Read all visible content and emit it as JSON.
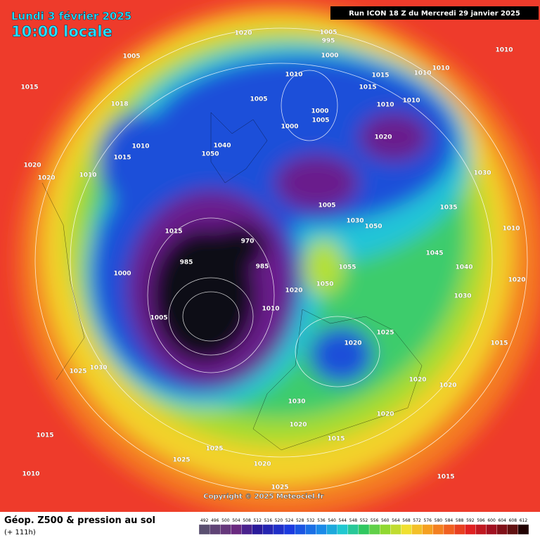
{
  "header": {
    "date": "Lundi 3 février 2025",
    "time": "10:00 locale",
    "run": "Run ICON 18 Z du Mercredi 29 janvier 2025"
  },
  "map": {
    "copyright": "Copyright © 2025 Meteociel.fr",
    "isobar_labels": [
      1020,
      1005,
      995,
      1000,
      1005,
      1010,
      1010,
      1010,
      1010,
      1015,
      1015,
      1015,
      1005,
      1010,
      1010,
      1018,
      1000,
      1005,
      1000,
      1020,
      1010,
      1040,
      1050,
      1015,
      1020,
      1010,
      1020,
      1005,
      1030,
      1050,
      1015,
      970,
      1000,
      985,
      985,
      1020,
      1050,
      1055,
      1005,
      1010,
      1025,
      1020,
      1030,
      1025,
      1030,
      1020,
      1020,
      1015,
      1015,
      1025,
      1025,
      1020,
      1010,
      1025,
      1015,
      1030,
      1010,
      1035,
      1045,
      1040,
      1020,
      1030,
      1020,
      1020,
      1015
    ]
  },
  "legend": {
    "title": "Géop. Z500 & pression au sol",
    "lead_time": "(+ 111h)",
    "scale": [
      492,
      496,
      500,
      504,
      508,
      512,
      516,
      520,
      524,
      528,
      532,
      536,
      540,
      544,
      548,
      552,
      556,
      560,
      564,
      568,
      572,
      576,
      580,
      584,
      588,
      592,
      596,
      600,
      604,
      608,
      612
    ]
  }
}
